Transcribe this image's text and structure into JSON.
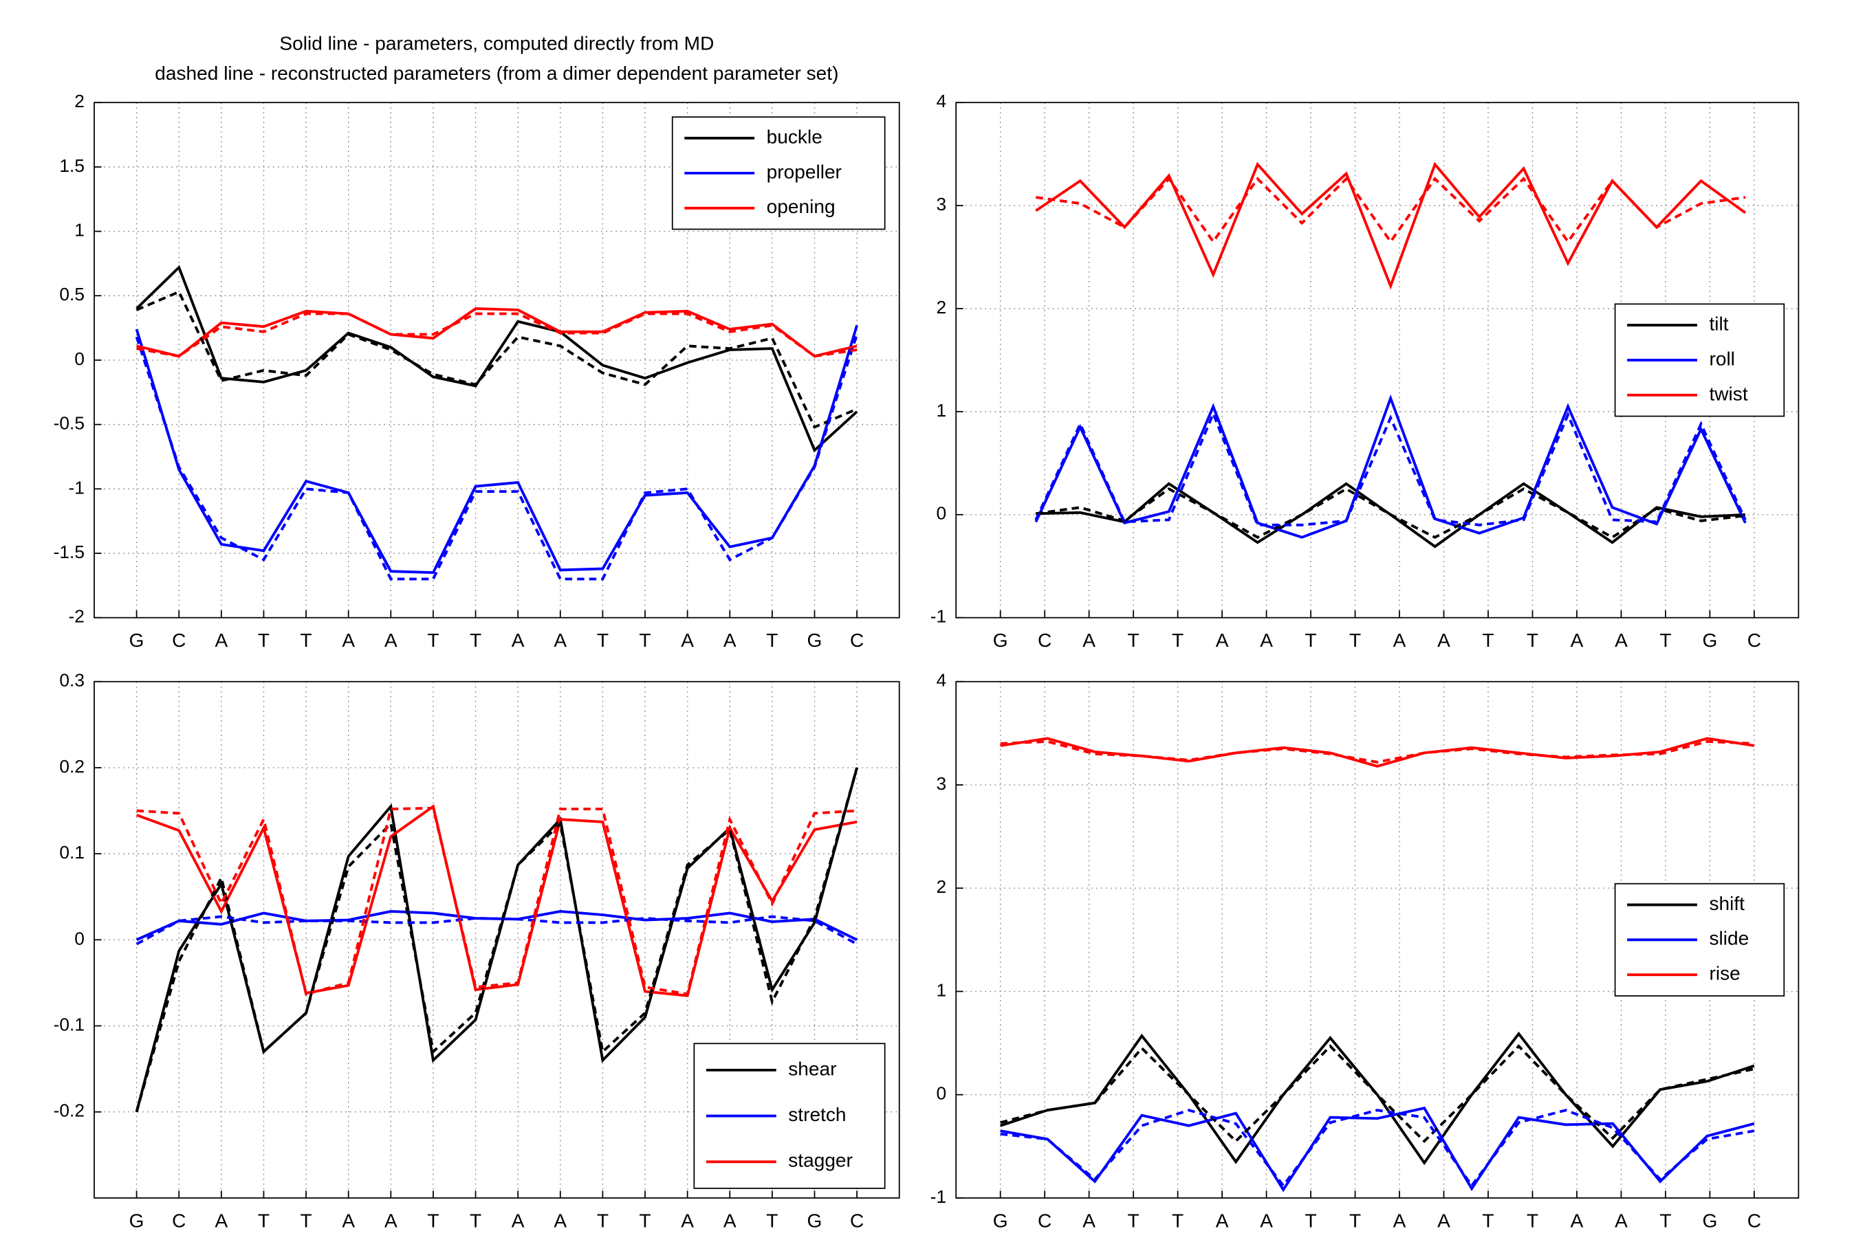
{
  "chart_data": [
    {
      "type": "line",
      "title": [
        "Solid line - parameters, computed directly from MD",
        "dashed line - reconstructed parameters (from a dimer dependent parameter set)"
      ],
      "x": [
        1,
        2,
        3,
        4,
        5,
        6,
        7,
        8,
        9,
        10,
        11,
        12,
        13,
        14,
        15,
        16,
        17,
        18
      ],
      "xlim": [
        0,
        19
      ],
      "xticks": [
        {
          "value": 1,
          "label": "G"
        },
        {
          "value": 2,
          "label": "C"
        },
        {
          "value": 3,
          "label": "A"
        },
        {
          "value": 4,
          "label": "T"
        },
        {
          "value": 5,
          "label": "T"
        },
        {
          "value": 6,
          "label": "A"
        },
        {
          "value": 7,
          "label": "A"
        },
        {
          "value": 8,
          "label": "T"
        },
        {
          "value": 9,
          "label": "T"
        },
        {
          "value": 10,
          "label": "A"
        },
        {
          "value": 11,
          "label": "A"
        },
        {
          "value": 12,
          "label": "T"
        },
        {
          "value": 13,
          "label": "T"
        },
        {
          "value": 14,
          "label": "A"
        },
        {
          "value": 15,
          "label": "A"
        },
        {
          "value": 16,
          "label": "T"
        },
        {
          "value": 17,
          "label": "G"
        },
        {
          "value": 18,
          "label": "C"
        }
      ],
      "ylim": [
        -2,
        2
      ],
      "yticks": [
        -2,
        -1.5,
        -1,
        -0.5,
        0,
        0.5,
        1,
        1.5,
        2
      ],
      "grid": true,
      "legend": "upper right",
      "series": [
        {
          "name": "buckle",
          "color": "#000000",
          "line_style": "solid",
          "values": [
            0.4,
            0.72,
            -0.14,
            -0.17,
            -0.08,
            0.21,
            0.1,
            -0.13,
            -0.2,
            0.3,
            0.22,
            -0.04,
            -0.14,
            -0.02,
            0.08,
            0.09,
            -0.7,
            -0.4
          ]
        },
        {
          "name": "propeller",
          "color": "#0000ff",
          "line_style": "solid",
          "values": [
            0.24,
            -0.85,
            -1.43,
            -1.48,
            -0.94,
            -1.03,
            -1.64,
            -1.65,
            -0.98,
            -0.95,
            -1.63,
            -1.62,
            -1.05,
            -1.03,
            -1.45,
            -1.38,
            -0.82,
            0.27
          ]
        },
        {
          "name": "opening",
          "color": "#ff0000",
          "line_style": "solid",
          "values": [
            0.11,
            0.03,
            0.29,
            0.26,
            0.38,
            0.36,
            0.2,
            0.17,
            0.4,
            0.39,
            0.22,
            0.22,
            0.37,
            0.38,
            0.24,
            0.28,
            0.03,
            0.11
          ]
        },
        {
          "color": "#000000",
          "line_style": "dashed",
          "values": [
            0.39,
            0.53,
            -0.16,
            -0.08,
            -0.12,
            0.2,
            0.08,
            -0.11,
            -0.19,
            0.18,
            0.11,
            -0.1,
            -0.19,
            0.11,
            0.09,
            0.17,
            -0.52,
            -0.38
          ]
        },
        {
          "color": "#0000ff",
          "line_style": "dashed",
          "values": [
            0.18,
            -0.83,
            -1.38,
            -1.55,
            -1.0,
            -1.03,
            -1.7,
            -1.7,
            -1.02,
            -1.02,
            -1.7,
            -1.7,
            -1.03,
            -1.0,
            -1.55,
            -1.38,
            -0.83,
            0.2
          ]
        },
        {
          "color": "#ff0000",
          "line_style": "dashed",
          "values": [
            0.09,
            0.03,
            0.26,
            0.22,
            0.36,
            0.36,
            0.2,
            0.2,
            0.36,
            0.36,
            0.21,
            0.21,
            0.36,
            0.36,
            0.22,
            0.27,
            0.03,
            0.08
          ]
        }
      ]
    },
    {
      "type": "line",
      "x": [
        1.8,
        2.8,
        3.8,
        4.8,
        5.8,
        6.8,
        7.8,
        8.8,
        9.8,
        10.8,
        11.8,
        12.8,
        13.8,
        14.8,
        15.8,
        16.8,
        17.8
      ],
      "xlim": [
        0,
        19
      ],
      "xticks": [
        {
          "value": 1,
          "label": "G"
        },
        {
          "value": 2,
          "label": "C"
        },
        {
          "value": 3,
          "label": "A"
        },
        {
          "value": 4,
          "label": "T"
        },
        {
          "value": 5,
          "label": "T"
        },
        {
          "value": 6,
          "label": "A"
        },
        {
          "value": 7,
          "label": "A"
        },
        {
          "value": 8,
          "label": "T"
        },
        {
          "value": 9,
          "label": "T"
        },
        {
          "value": 10,
          "label": "A"
        },
        {
          "value": 11,
          "label": "A"
        },
        {
          "value": 12,
          "label": "T"
        },
        {
          "value": 13,
          "label": "T"
        },
        {
          "value": 14,
          "label": "A"
        },
        {
          "value": 15,
          "label": "A"
        },
        {
          "value": 16,
          "label": "T"
        },
        {
          "value": 17,
          "label": "G"
        },
        {
          "value": 18,
          "label": "C"
        }
      ],
      "ylim": [
        -1,
        4
      ],
      "yticks": [
        -1,
        0,
        1,
        2,
        3,
        4
      ],
      "grid": true,
      "legend": "center right",
      "series": [
        {
          "name": "tilt",
          "color": "#000000",
          "line_style": "solid",
          "values": [
            0.01,
            0.02,
            -0.07,
            0.3,
            0.02,
            -0.27,
            0.0,
            0.3,
            0.0,
            -0.31,
            0.0,
            0.3,
            0.02,
            -0.27,
            0.07,
            -0.02,
            0.0
          ]
        },
        {
          "name": "roll",
          "color": "#0000ff",
          "line_style": "solid",
          "values": [
            -0.07,
            0.85,
            -0.08,
            0.03,
            1.05,
            -0.08,
            -0.22,
            -0.06,
            1.13,
            -0.04,
            -0.18,
            -0.03,
            1.05,
            0.07,
            -0.09,
            0.83,
            -0.08
          ]
        },
        {
          "name": "twist",
          "color": "#ff0000",
          "line_style": "solid",
          "values": [
            2.95,
            3.24,
            2.79,
            3.29,
            2.33,
            3.4,
            2.92,
            3.31,
            2.22,
            3.4,
            2.89,
            3.36,
            2.44,
            3.24,
            2.79,
            3.24,
            2.93
          ]
        },
        {
          "color": "#000000",
          "line_style": "dashed",
          "values": [
            0.01,
            0.07,
            -0.06,
            0.25,
            0.02,
            -0.22,
            0.0,
            0.25,
            0.0,
            -0.22,
            0.0,
            0.25,
            0.02,
            -0.22,
            0.06,
            -0.06,
            -0.01
          ]
        },
        {
          "color": "#0000ff",
          "line_style": "dashed",
          "values": [
            -0.05,
            0.88,
            -0.07,
            -0.05,
            0.98,
            -0.1,
            -0.1,
            -0.06,
            0.94,
            -0.05,
            -0.1,
            -0.05,
            0.97,
            -0.05,
            -0.07,
            0.88,
            -0.05
          ]
        },
        {
          "color": "#ff0000",
          "line_style": "dashed",
          "values": [
            3.08,
            3.02,
            2.79,
            3.26,
            2.65,
            3.26,
            2.83,
            3.26,
            2.65,
            3.26,
            2.85,
            3.26,
            2.65,
            3.24,
            2.79,
            3.02,
            3.08
          ]
        }
      ]
    },
    {
      "type": "line",
      "x": [
        1,
        2,
        3,
        4,
        5,
        6,
        7,
        8,
        9,
        10,
        11,
        12,
        13,
        14,
        15,
        16,
        17,
        18
      ],
      "xlim": [
        0,
        19
      ],
      "xticks": [
        {
          "value": 1,
          "label": "G"
        },
        {
          "value": 2,
          "label": "C"
        },
        {
          "value": 3,
          "label": "A"
        },
        {
          "value": 4,
          "label": "T"
        },
        {
          "value": 5,
          "label": "T"
        },
        {
          "value": 6,
          "label": "A"
        },
        {
          "value": 7,
          "label": "A"
        },
        {
          "value": 8,
          "label": "T"
        },
        {
          "value": 9,
          "label": "T"
        },
        {
          "value": 10,
          "label": "A"
        },
        {
          "value": 11,
          "label": "A"
        },
        {
          "value": 12,
          "label": "T"
        },
        {
          "value": 13,
          "label": "T"
        },
        {
          "value": 14,
          "label": "A"
        },
        {
          "value": 15,
          "label": "A"
        },
        {
          "value": 16,
          "label": "T"
        },
        {
          "value": 17,
          "label": "G"
        },
        {
          "value": 18,
          "label": "C"
        }
      ],
      "ylim": [
        -0.3,
        0.3
      ],
      "yticks": [
        -0.2,
        -0.1,
        0,
        0.1,
        0.2,
        0.3
      ],
      "grid": true,
      "legend": "lower right",
      "series": [
        {
          "name": "shear",
          "color": "#000000",
          "line_style": "solid",
          "values": [
            -0.2,
            -0.013,
            0.065,
            -0.13,
            -0.085,
            0.097,
            0.155,
            -0.14,
            -0.093,
            0.087,
            0.14,
            -0.14,
            -0.09,
            0.083,
            0.13,
            -0.058,
            0.02,
            0.2
          ]
        },
        {
          "name": "stretch",
          "color": "#0000ff",
          "line_style": "solid",
          "values": [
            0.0,
            0.022,
            0.018,
            0.031,
            0.022,
            0.023,
            0.033,
            0.031,
            0.025,
            0.024,
            0.033,
            0.029,
            0.023,
            0.025,
            0.031,
            0.021,
            0.024,
            0.0
          ]
        },
        {
          "name": "stagger",
          "color": "#ff0000",
          "line_style": "solid",
          "values": [
            0.145,
            0.127,
            0.033,
            0.13,
            -0.062,
            -0.053,
            0.12,
            0.155,
            -0.058,
            -0.052,
            0.14,
            0.137,
            -0.06,
            -0.065,
            0.13,
            0.045,
            0.128,
            0.137
          ]
        },
        {
          "color": "#000000",
          "line_style": "dashed",
          "values": [
            -0.2,
            -0.025,
            0.072,
            -0.13,
            -0.085,
            0.085,
            0.135,
            -0.13,
            -0.085,
            0.087,
            0.135,
            -0.13,
            -0.085,
            0.087,
            0.128,
            -0.072,
            0.025,
            0.2
          ]
        },
        {
          "color": "#0000ff",
          "line_style": "dashed",
          "values": [
            -0.005,
            0.022,
            0.027,
            0.02,
            0.022,
            0.022,
            0.02,
            0.02,
            0.025,
            0.024,
            0.02,
            0.02,
            0.025,
            0.022,
            0.02,
            0.027,
            0.022,
            -0.005
          ]
        },
        {
          "color": "#ff0000",
          "line_style": "dashed",
          "values": [
            0.15,
            0.147,
            0.042,
            0.14,
            -0.063,
            -0.05,
            0.152,
            0.153,
            -0.055,
            -0.05,
            0.152,
            0.152,
            -0.055,
            -0.063,
            0.14,
            0.042,
            0.147,
            0.15
          ]
        }
      ]
    },
    {
      "type": "line",
      "x": [
        1,
        2.06,
        3.13,
        4.19,
        5.25,
        6.31,
        7.38,
        8.44,
        9.5,
        10.56,
        11.63,
        12.69,
        13.75,
        14.81,
        15.88,
        16.94,
        18
      ],
      "xlim": [
        0,
        19
      ],
      "xticks": [
        {
          "value": 1,
          "label": "G"
        },
        {
          "value": 2,
          "label": "C"
        },
        {
          "value": 3,
          "label": "A"
        },
        {
          "value": 4,
          "label": "T"
        },
        {
          "value": 5,
          "label": "T"
        },
        {
          "value": 6,
          "label": "A"
        },
        {
          "value": 7,
          "label": "A"
        },
        {
          "value": 8,
          "label": "T"
        },
        {
          "value": 9,
          "label": "T"
        },
        {
          "value": 10,
          "label": "A"
        },
        {
          "value": 11,
          "label": "A"
        },
        {
          "value": 12,
          "label": "T"
        },
        {
          "value": 13,
          "label": "T"
        },
        {
          "value": 14,
          "label": "A"
        },
        {
          "value": 15,
          "label": "A"
        },
        {
          "value": 16,
          "label": "T"
        },
        {
          "value": 17,
          "label": "G"
        },
        {
          "value": 18,
          "label": "C"
        }
      ],
      "ylim": [
        -1,
        4
      ],
      "yticks": [
        -1,
        0,
        1,
        2,
        3,
        4
      ],
      "grid": true,
      "legend": "center right",
      "series": [
        {
          "name": "shift",
          "color": "#000000",
          "line_style": "solid",
          "values": [
            -0.3,
            -0.15,
            -0.08,
            0.57,
            0.0,
            -0.65,
            0.0,
            0.55,
            0.0,
            -0.66,
            0.0,
            0.59,
            0.0,
            -0.5,
            0.05,
            0.13,
            0.28
          ]
        },
        {
          "name": "slide",
          "color": "#0000ff",
          "line_style": "solid",
          "values": [
            -0.35,
            -0.43,
            -0.84,
            -0.2,
            -0.3,
            -0.18,
            -0.92,
            -0.22,
            -0.23,
            -0.13,
            -0.91,
            -0.22,
            -0.29,
            -0.28,
            -0.84,
            -0.4,
            -0.28
          ]
        },
        {
          "name": "rise",
          "color": "#ff0000",
          "line_style": "solid",
          "values": [
            3.38,
            3.45,
            3.32,
            3.28,
            3.23,
            3.31,
            3.36,
            3.31,
            3.18,
            3.31,
            3.36,
            3.31,
            3.26,
            3.28,
            3.32,
            3.45,
            3.38
          ]
        },
        {
          "color": "#000000",
          "line_style": "dashed",
          "values": [
            -0.27,
            -0.15,
            -0.08,
            0.45,
            0.0,
            -0.45,
            0.0,
            0.47,
            0.0,
            -0.45,
            0.0,
            0.47,
            0.0,
            -0.42,
            0.05,
            0.15,
            0.25
          ]
        },
        {
          "color": "#0000ff",
          "line_style": "dashed",
          "values": [
            -0.38,
            -0.43,
            -0.82,
            -0.3,
            -0.15,
            -0.28,
            -0.88,
            -0.27,
            -0.15,
            -0.22,
            -0.88,
            -0.27,
            -0.15,
            -0.32,
            -0.82,
            -0.43,
            -0.35
          ]
        },
        {
          "color": "#ff0000",
          "line_style": "dashed",
          "values": [
            3.4,
            3.42,
            3.3,
            3.28,
            3.24,
            3.31,
            3.35,
            3.3,
            3.22,
            3.31,
            3.35,
            3.3,
            3.27,
            3.29,
            3.3,
            3.42,
            3.4
          ]
        }
      ]
    }
  ]
}
